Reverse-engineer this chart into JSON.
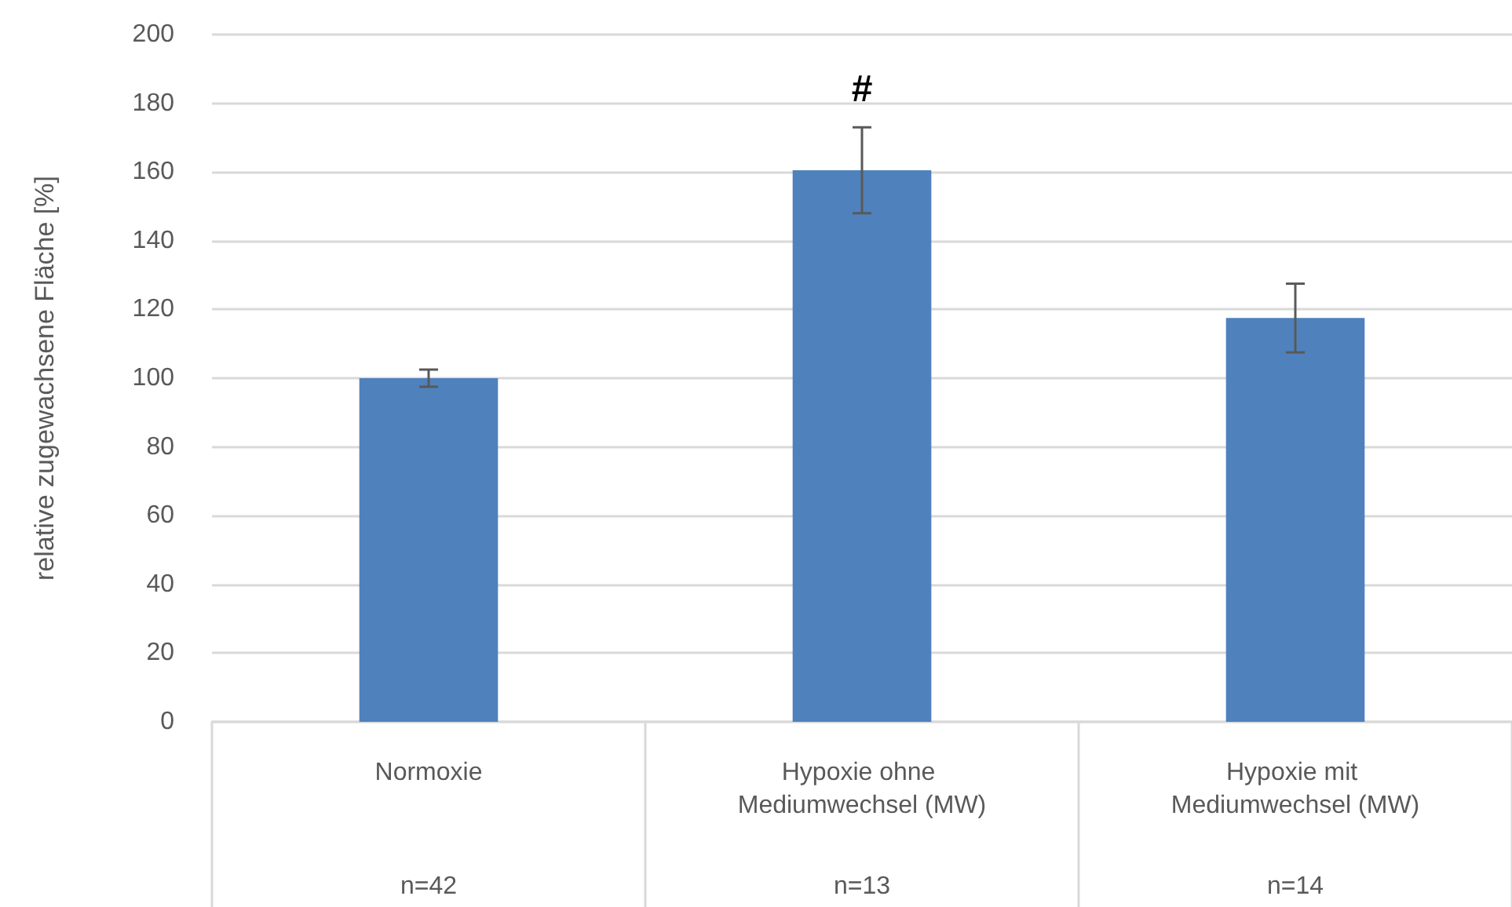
{
  "chart_data": {
    "type": "bar",
    "ylabel": "relative zugewachsene Fläche [%]",
    "categories": [
      "Normoxie",
      "Hypoxie ohne Mediumwechsel (MW)",
      "Hypoxie mit Mediumwechsel (MW)"
    ],
    "values": [
      100,
      160.5,
      117.5
    ],
    "errors": [
      2.5,
      12.5,
      10
    ],
    "value_labels": [
      null,
      "#",
      null
    ],
    "color": "#4f81bd",
    "ylim": [
      0,
      200
    ],
    "yticks": [
      0,
      20,
      40,
      60,
      80,
      100,
      120,
      140,
      160,
      180,
      200
    ],
    "grid": "y",
    "annotations": [
      "n=42",
      "n=13",
      "n=14"
    ]
  }
}
